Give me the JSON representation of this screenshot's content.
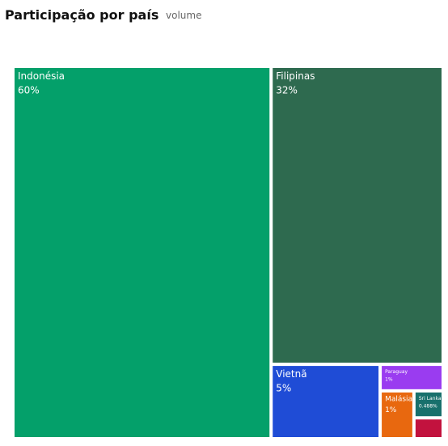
{
  "chart_data": {
    "type": "treemap",
    "title": "Participação por país",
    "subtitle": "volume",
    "categories": [
      "Indonésia",
      "Filipinas",
      "Vietnã",
      "Paraguay",
      "Malásia",
      "Sri Lanka",
      null
    ],
    "values": [
      60,
      32,
      5,
      1,
      1,
      0.488,
      0.37
    ],
    "value_labels": [
      "60%",
      "32%",
      "5%",
      "1%",
      "1%",
      "0.488%",
      null
    ],
    "colors": [
      "#04a06a",
      "#2e6a4f",
      "#1f4cd6",
      "#9a3cf0",
      "#e8680f",
      "#18706c",
      "#c2123e"
    ]
  }
}
